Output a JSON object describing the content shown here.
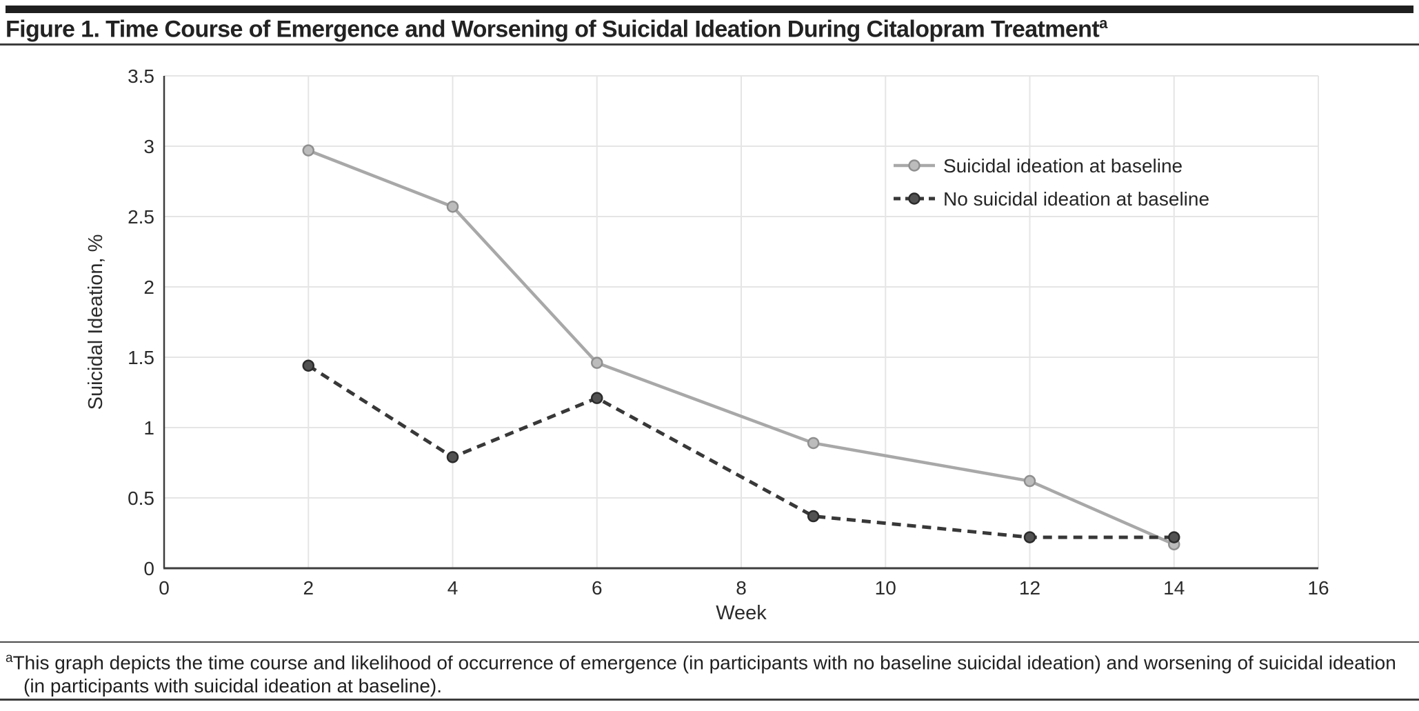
{
  "figure": {
    "title": "Figure 1. Time Course of Emergence and Worsening of Suicidal Ideation During Citalopram Treatment",
    "title_superscript": "a",
    "footnote_marker": "a",
    "footnote": "This graph depicts the time course and likelihood of occurrence of emergence (in participants with no baseline suicidal ideation) and worsening of suicidal ideation (in participants with suicidal ideation at baseline)."
  },
  "chart_data": {
    "type": "line",
    "title": "",
    "xlabel": "Week",
    "ylabel": "Suicidal Ideation, %",
    "xlim": [
      0,
      16
    ],
    "ylim": [
      0,
      3.5
    ],
    "xticks": [
      0,
      2,
      4,
      6,
      8,
      10,
      12,
      14,
      16
    ],
    "yticks": [
      0,
      0.5,
      1,
      1.5,
      2,
      2.5,
      3,
      3.5
    ],
    "grid": true,
    "legend_position": "upper-right-inside",
    "series": [
      {
        "name": "Suicidal ideation at baseline",
        "line_style": "solid",
        "line_color": "#a8a8a8",
        "marker": "circle",
        "marker_fill": "#bcbcbc",
        "marker_stroke": "#8f8f8f",
        "x": [
          2,
          4,
          6,
          9,
          12,
          14
        ],
        "y": [
          2.97,
          2.57,
          1.46,
          0.89,
          0.62,
          0.17
        ]
      },
      {
        "name": "No suicidal ideation at baseline",
        "line_style": "dashed",
        "line_color": "#383838",
        "marker": "circle",
        "marker_fill": "#525252",
        "marker_stroke": "#2b2b2b",
        "x": [
          2,
          4,
          6,
          9,
          12,
          14
        ],
        "y": [
          1.44,
          0.79,
          1.21,
          0.37,
          0.22,
          0.22
        ]
      }
    ]
  },
  "colors": {
    "header_bar": "#1f1f1f",
    "rule": "#3c3c3c",
    "axis": "#3d3d3d",
    "grid": "#e5e5e5",
    "tick_text": "#2b2b2b",
    "legend_text": "#262626"
  }
}
